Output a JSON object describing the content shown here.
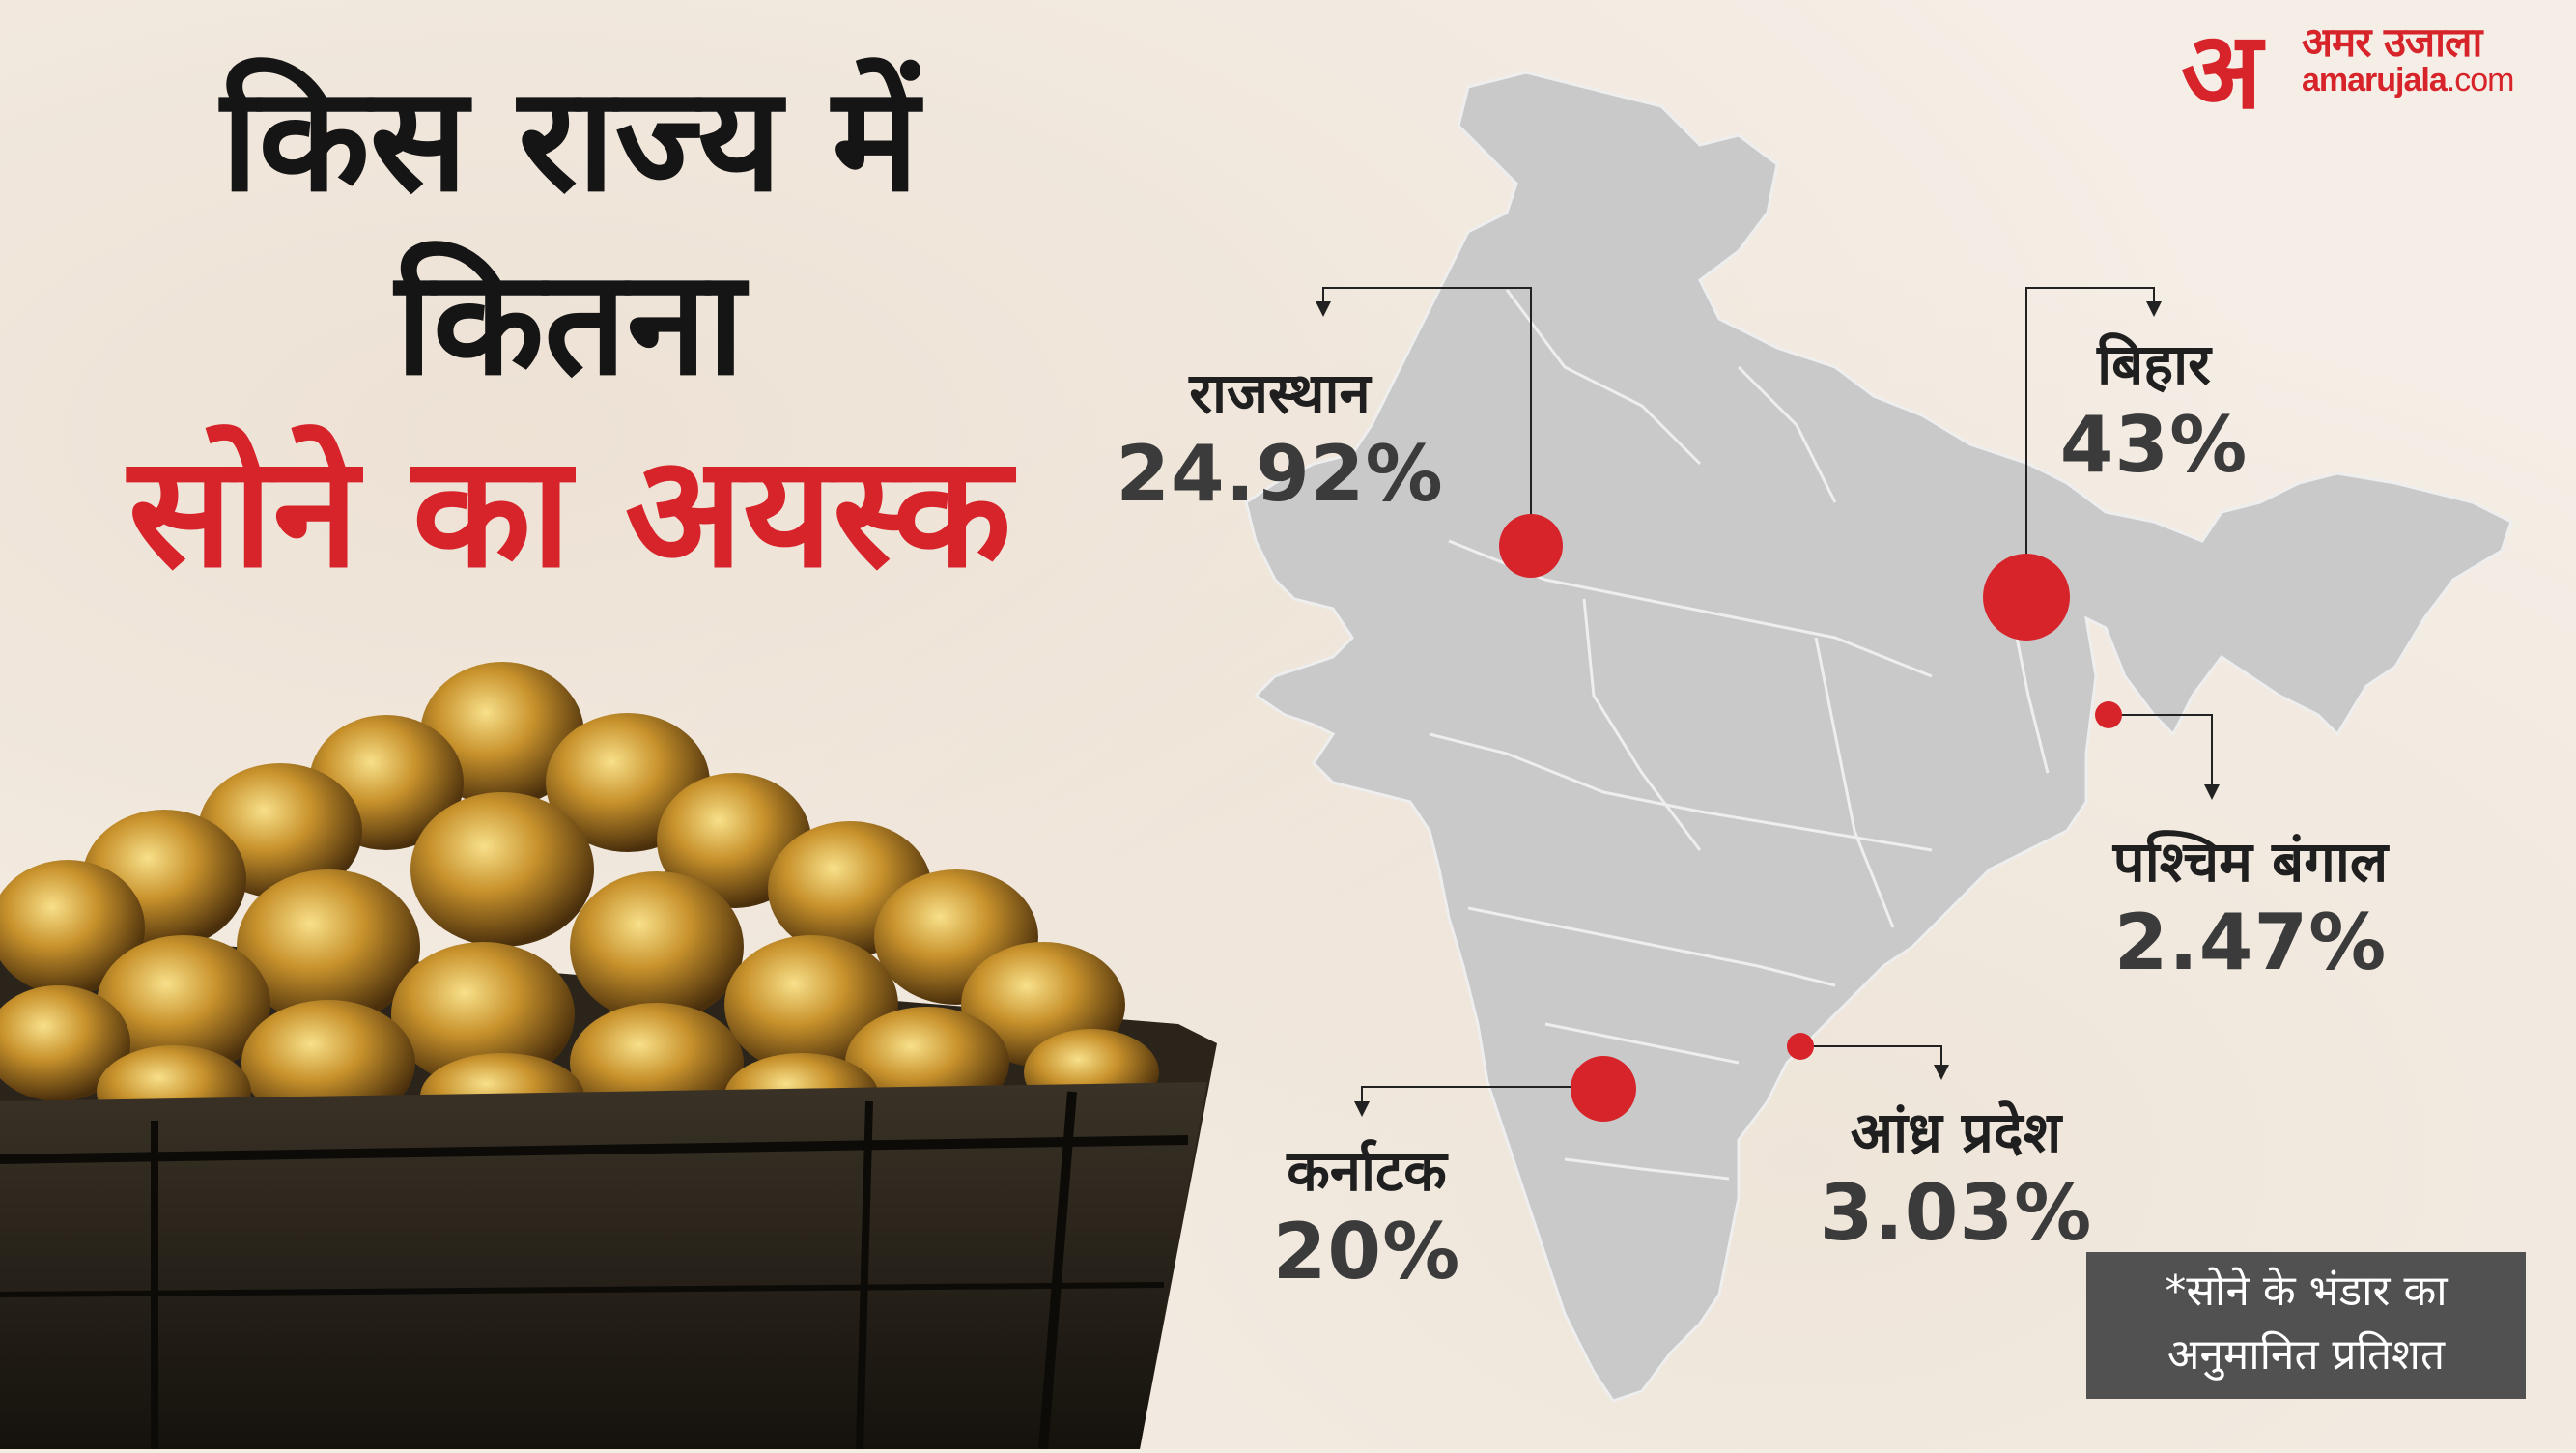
{
  "headline": {
    "line1": "किस राज्य में",
    "line2": "कितना",
    "line3": "सोने का अयस्क"
  },
  "logo": {
    "mark": "अ",
    "name_hindi": "अमर उजाला",
    "domain": "amarujala",
    "tld": ".com"
  },
  "states": [
    {
      "name": "राजस्थान",
      "value": "24.92%"
    },
    {
      "name": "बिहार",
      "value": "43%"
    },
    {
      "name": "पश्चिम बंगाल",
      "value": "2.47%"
    },
    {
      "name": "कर्नाटक",
      "value": "20%"
    },
    {
      "name": "आंध्र प्रदेश",
      "value": "3.03%"
    }
  ],
  "note": {
    "line1": "*सोने के भंडार का",
    "line2": "अनुमानित प्रतिशत"
  },
  "colors": {
    "accent_red": "#d7242b",
    "map_fill": "#c9c9c9",
    "map_border": "#f2f2f2",
    "note_bg": "#515151"
  },
  "icons": [
    "amar-ujala-logo",
    "india-map",
    "gold-ore-cart"
  ]
}
